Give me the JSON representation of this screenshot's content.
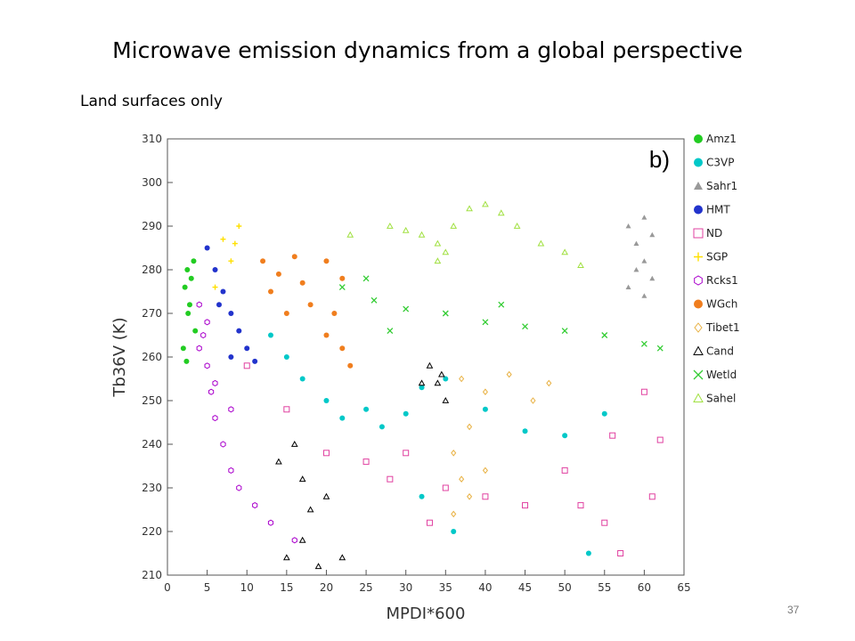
{
  "slide": {
    "title": "Microwave emission dynamics from a global perspective",
    "subtitle": "Land surfaces only",
    "page_number": "37"
  },
  "chart_data": {
    "type": "scatter",
    "panel_label": "b)",
    "xlabel": "MPDI*600",
    "ylabel": "Tb36V (K)",
    "xlim": [
      0,
      65
    ],
    "ylim": [
      210,
      310
    ],
    "x_ticks": [
      0,
      5,
      10,
      15,
      20,
      25,
      30,
      35,
      40,
      45,
      50,
      55,
      60,
      65
    ],
    "y_ticks": [
      210,
      220,
      230,
      240,
      250,
      260,
      270,
      280,
      290,
      300,
      310
    ],
    "grid": false,
    "legend_position": "right",
    "series": [
      {
        "name": "Amz1",
        "marker": "filled-circle",
        "color": "#22cc22",
        "points": [
          [
            2.5,
            280
          ],
          [
            3.0,
            278
          ],
          [
            2.2,
            276
          ],
          [
            2.8,
            272
          ],
          [
            3.3,
            282
          ],
          [
            2.6,
            270
          ],
          [
            2.0,
            262
          ],
          [
            3.5,
            266
          ],
          [
            2.4,
            259
          ]
        ]
      },
      {
        "name": "C3VP",
        "marker": "filled-circle",
        "color": "#00c8c8",
        "points": [
          [
            13,
            265
          ],
          [
            15,
            260
          ],
          [
            17,
            255
          ],
          [
            20,
            250
          ],
          [
            22,
            246
          ],
          [
            25,
            248
          ],
          [
            27,
            244
          ],
          [
            30,
            247
          ],
          [
            32,
            253
          ],
          [
            35,
            255
          ],
          [
            40,
            248
          ],
          [
            45,
            243
          ],
          [
            50,
            242
          ],
          [
            55,
            247
          ],
          [
            32,
            228
          ],
          [
            36,
            220
          ],
          [
            53,
            215
          ]
        ]
      },
      {
        "name": "Sahr1",
        "marker": "filled-triangle",
        "color": "#999999",
        "points": [
          [
            58,
            290
          ],
          [
            59,
            286
          ],
          [
            60,
            282
          ],
          [
            61,
            278
          ],
          [
            60,
            274
          ],
          [
            59,
            280
          ],
          [
            61,
            288
          ],
          [
            60,
            292
          ],
          [
            58,
            276
          ]
        ]
      },
      {
        "name": "HMT",
        "marker": "filled-circle",
        "color": "#2233cc",
        "points": [
          [
            5,
            285
          ],
          [
            6,
            280
          ],
          [
            7,
            275
          ],
          [
            8,
            270
          ],
          [
            9,
            266
          ],
          [
            10,
            262
          ],
          [
            11,
            259
          ],
          [
            6.5,
            272
          ],
          [
            8,
            260
          ]
        ]
      },
      {
        "name": "ND",
        "marker": "open-square",
        "color": "#e040a0",
        "points": [
          [
            10,
            258
          ],
          [
            15,
            248
          ],
          [
            20,
            238
          ],
          [
            25,
            236
          ],
          [
            28,
            232
          ],
          [
            30,
            238
          ],
          [
            33,
            222
          ],
          [
            35,
            230
          ],
          [
            40,
            228
          ],
          [
            45,
            226
          ],
          [
            50,
            234
          ],
          [
            52,
            226
          ],
          [
            55,
            222
          ],
          [
            57,
            215
          ],
          [
            61,
            228
          ],
          [
            62,
            241
          ],
          [
            56,
            242
          ],
          [
            60,
            252
          ]
        ]
      },
      {
        "name": "SGP",
        "marker": "plus",
        "color": "#ffe000",
        "points": [
          [
            7,
            287
          ],
          [
            8,
            282
          ],
          [
            9,
            290
          ],
          [
            6,
            276
          ],
          [
            8.5,
            286
          ]
        ]
      },
      {
        "name": "Rcks1",
        "marker": "open-hexagon",
        "color": "#aa00cc",
        "points": [
          [
            4,
            272
          ],
          [
            4.5,
            265
          ],
          [
            5,
            258
          ],
          [
            5.5,
            252
          ],
          [
            6,
            246
          ],
          [
            7,
            240
          ],
          [
            8,
            234
          ],
          [
            9,
            230
          ],
          [
            11,
            226
          ],
          [
            13,
            222
          ],
          [
            16,
            218
          ],
          [
            5,
            268
          ],
          [
            4,
            262
          ],
          [
            6,
            254
          ],
          [
            8,
            248
          ]
        ]
      },
      {
        "name": "WGch",
        "marker": "filled-circle",
        "color": "#f07e1e",
        "points": [
          [
            12,
            282
          ],
          [
            14,
            279
          ],
          [
            16,
            283
          ],
          [
            13,
            275
          ],
          [
            18,
            272
          ],
          [
            20,
            282
          ],
          [
            22,
            278
          ],
          [
            21,
            270
          ],
          [
            20,
            265
          ],
          [
            22,
            262
          ],
          [
            23,
            258
          ],
          [
            15,
            270
          ],
          [
            17,
            277
          ]
        ]
      },
      {
        "name": "Tibet1",
        "marker": "open-diamond",
        "color": "#e8b040",
        "points": [
          [
            37,
            255
          ],
          [
            40,
            252
          ],
          [
            43,
            256
          ],
          [
            46,
            250
          ],
          [
            38,
            244
          ],
          [
            36,
            238
          ],
          [
            37,
            232
          ],
          [
            38,
            228
          ],
          [
            36,
            224
          ],
          [
            40,
            234
          ],
          [
            48,
            254
          ]
        ]
      },
      {
        "name": "Cand",
        "marker": "open-triangle",
        "color": "#000000",
        "points": [
          [
            33,
            258
          ],
          [
            34,
            254
          ],
          [
            35,
            250
          ],
          [
            34.5,
            256
          ],
          [
            32,
            254
          ],
          [
            16,
            240
          ],
          [
            17,
            232
          ],
          [
            18,
            225
          ],
          [
            17,
            218
          ],
          [
            15,
            214
          ],
          [
            19,
            212
          ],
          [
            14,
            236
          ],
          [
            20,
            228
          ],
          [
            22,
            214
          ]
        ]
      },
      {
        "name": "Wetld",
        "marker": "cross",
        "color": "#33cc33",
        "points": [
          [
            22,
            276
          ],
          [
            26,
            273
          ],
          [
            30,
            271
          ],
          [
            35,
            270
          ],
          [
            40,
            268
          ],
          [
            45,
            267
          ],
          [
            50,
            266
          ],
          [
            55,
            265
          ],
          [
            60,
            263
          ],
          [
            28,
            266
          ],
          [
            42,
            272
          ],
          [
            62,
            262
          ],
          [
            25,
            278
          ]
        ]
      },
      {
        "name": "Sahel",
        "marker": "open-triangle",
        "color": "#a0e040",
        "points": [
          [
            23,
            288
          ],
          [
            28,
            290
          ],
          [
            32,
            288
          ],
          [
            34,
            286
          ],
          [
            35,
            284
          ],
          [
            36,
            290
          ],
          [
            38,
            294
          ],
          [
            40,
            295
          ],
          [
            42,
            293
          ],
          [
            44,
            290
          ],
          [
            47,
            286
          ],
          [
            50,
            284
          ],
          [
            52,
            281
          ],
          [
            34,
            282
          ],
          [
            30,
            289
          ]
        ]
      }
    ]
  }
}
